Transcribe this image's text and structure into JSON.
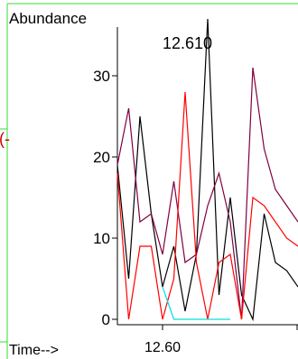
{
  "chart_data": {
    "type": "line",
    "ylabel": "Abundance",
    "xlabel": "Time-->",
    "cursor_readout": "12.610",
    "side_mark": "(-",
    "x_tick_labels": [
      "12.60"
    ],
    "y_ticks": [
      0,
      10,
      20,
      30
    ],
    "ylim": [
      0,
      36
    ],
    "x": [
      12.592,
      12.594,
      12.596,
      12.598,
      12.6,
      12.602,
      12.604,
      12.606,
      12.608,
      12.61,
      12.612,
      12.614,
      12.616,
      12.618,
      12.62,
      12.622,
      12.624
    ],
    "xlim": [
      12.592,
      12.624
    ],
    "grid": false,
    "legend": "none",
    "series": [
      {
        "color": "#000000",
        "values": [
          19,
          5,
          25,
          13,
          4,
          9,
          1,
          8,
          37,
          3,
          15,
          3,
          0,
          13,
          7,
          6,
          4
        ]
      },
      {
        "color": "#800040",
        "values": [
          19,
          26,
          12,
          13,
          8,
          17,
          7,
          8,
          14,
          18,
          12,
          0,
          31,
          21,
          16,
          14,
          12
        ]
      },
      {
        "color": "#ff0000",
        "values": [
          18,
          0,
          9,
          9,
          0,
          5,
          28,
          7,
          0,
          7,
          8,
          0,
          15,
          14,
          12,
          10,
          9
        ]
      },
      {
        "color": "#00e0e0",
        "values": [
          null,
          null,
          null,
          null,
          4,
          0,
          0,
          0,
          0,
          0,
          0,
          null,
          null,
          null,
          null,
          null,
          null
        ]
      }
    ]
  }
}
